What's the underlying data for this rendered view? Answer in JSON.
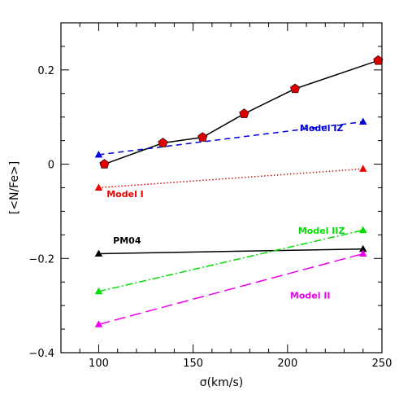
{
  "chart_data": {
    "type": "line",
    "title": "",
    "xlabel": "σ(km/s)",
    "ylabel": "[<N/Fe>]",
    "xlim": [
      80,
      250
    ],
    "ylim": [
      -0.4,
      0.3
    ],
    "x_ticks": [
      100,
      150,
      200,
      250
    ],
    "x_tick_labels": [
      "100",
      "150",
      "200",
      "250"
    ],
    "y_ticks": [
      -0.4,
      -0.2,
      0,
      0.2
    ],
    "y_tick_labels": [
      "−0.4",
      "−0.2",
      "0",
      "0.2"
    ],
    "grid": false,
    "series": [
      {
        "style": "solid",
        "color": "#000000",
        "marker": "pentagon",
        "marker_color": "#dd0000",
        "x": [
          103,
          134,
          155,
          177,
          204,
          248
        ],
        "y": [
          0.0,
          0.045,
          0.057,
          0.107,
          0.16,
          0.22
        ]
      },
      {
        "name": "Model IZ",
        "style": "dashed",
        "color": "#0000dd",
        "marker": "triangle",
        "x": [
          100,
          240
        ],
        "y": [
          0.02,
          0.09
        ]
      },
      {
        "name": "Model I",
        "style": "dotted",
        "color": "#ee0000",
        "marker": "triangle",
        "x": [
          100,
          240
        ],
        "y": [
          -0.05,
          -0.01
        ]
      },
      {
        "name": "PM04",
        "style": "solid",
        "color": "#000000",
        "marker": "triangle",
        "x": [
          100,
          240
        ],
        "y": [
          -0.19,
          -0.18
        ]
      },
      {
        "name": "Model IIZ",
        "style": "dashdot",
        "color": "#00dd00",
        "marker": "triangle",
        "x": [
          100,
          240
        ],
        "y": [
          -0.27,
          -0.14
        ]
      },
      {
        "name": "Model II",
        "style": "longdash",
        "color": "#ee00ee",
        "marker": "triangle",
        "x": [
          100,
          240
        ],
        "y": [
          -0.34,
          -0.19
        ]
      }
    ],
    "annotations": [
      {
        "text": "Model IZ",
        "x": 218,
        "y": 0.07,
        "color": "#0000dd"
      },
      {
        "text": "Model I",
        "x": 114,
        "y": -0.07,
        "color": "#ee0000"
      },
      {
        "text": "PM04",
        "x": 115,
        "y": -0.168,
        "color": "#000000"
      },
      {
        "text": "Model IIZ",
        "x": 218,
        "y": -0.148,
        "color": "#00dd00"
      },
      {
        "text": "Model II",
        "x": 212,
        "y": -0.285,
        "color": "#ee00ee"
      }
    ]
  }
}
